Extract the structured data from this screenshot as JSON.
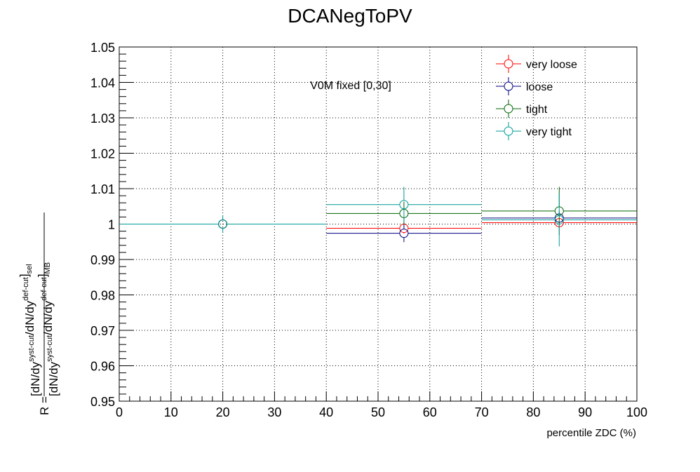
{
  "chart_data": {
    "type": "scatter",
    "title": "DCANegToPV",
    "xlabel": "percentile ZDC (%)",
    "ylabel": {
      "prefix": "R =",
      "numerator": "[dN/dy^syst-cut/dN/dy^def-cut]_sel",
      "denominator": "[dN/dy^syst-cut/dN/dy^def-cut]_MB"
    },
    "annotation": "V0M fixed [0,30]",
    "xlim": [
      0,
      100
    ],
    "ylim": [
      0.95,
      1.05
    ],
    "x_ticks": [
      0,
      10,
      20,
      30,
      40,
      50,
      60,
      70,
      80,
      90,
      100
    ],
    "x_tick_labels": [
      "0",
      "10",
      "20",
      "30",
      "40",
      "50",
      "60",
      "70",
      "80",
      "90",
      "100"
    ],
    "y_ticks": [
      0.95,
      0.96,
      0.97,
      0.98,
      0.99,
      1.0,
      1.01,
      1.02,
      1.03,
      1.04,
      1.05
    ],
    "y_tick_labels": [
      "0.95",
      "0.96",
      "0.97",
      "0.98",
      "0.99",
      "1",
      "1.01",
      "1.02",
      "1.03",
      "1.04",
      "1.05"
    ],
    "grid": true,
    "legend_position": "top-right",
    "bins": [
      {
        "x": 20,
        "xlow": 0,
        "xhigh": 40
      },
      {
        "x": 55,
        "xlow": 40,
        "xhigh": 70
      },
      {
        "x": 85,
        "xlow": 70,
        "xhigh": 100
      }
    ],
    "series": [
      {
        "name": "very loose",
        "color": "#ff0000",
        "y": [
          1.0,
          0.9988,
          1.0004
        ],
        "yerr": [
          0.0012,
          0.0015,
          0.0012
        ]
      },
      {
        "name": "loose",
        "color": "#00007f",
        "y": [
          1.0,
          0.9974,
          1.0017
        ],
        "yerr": [
          0.0012,
          0.0025,
          0.002
        ]
      },
      {
        "name": "tight",
        "color": "#006400",
        "y": [
          1.0,
          1.003,
          1.0037
        ],
        "yerr": [
          0.0015,
          0.0033,
          0.0068
        ]
      },
      {
        "name": "very tight",
        "color": "#009999",
        "y": [
          1.0,
          1.0055,
          1.0012
        ],
        "yerr": [
          0.0025,
          0.005,
          0.0075
        ]
      }
    ]
  }
}
